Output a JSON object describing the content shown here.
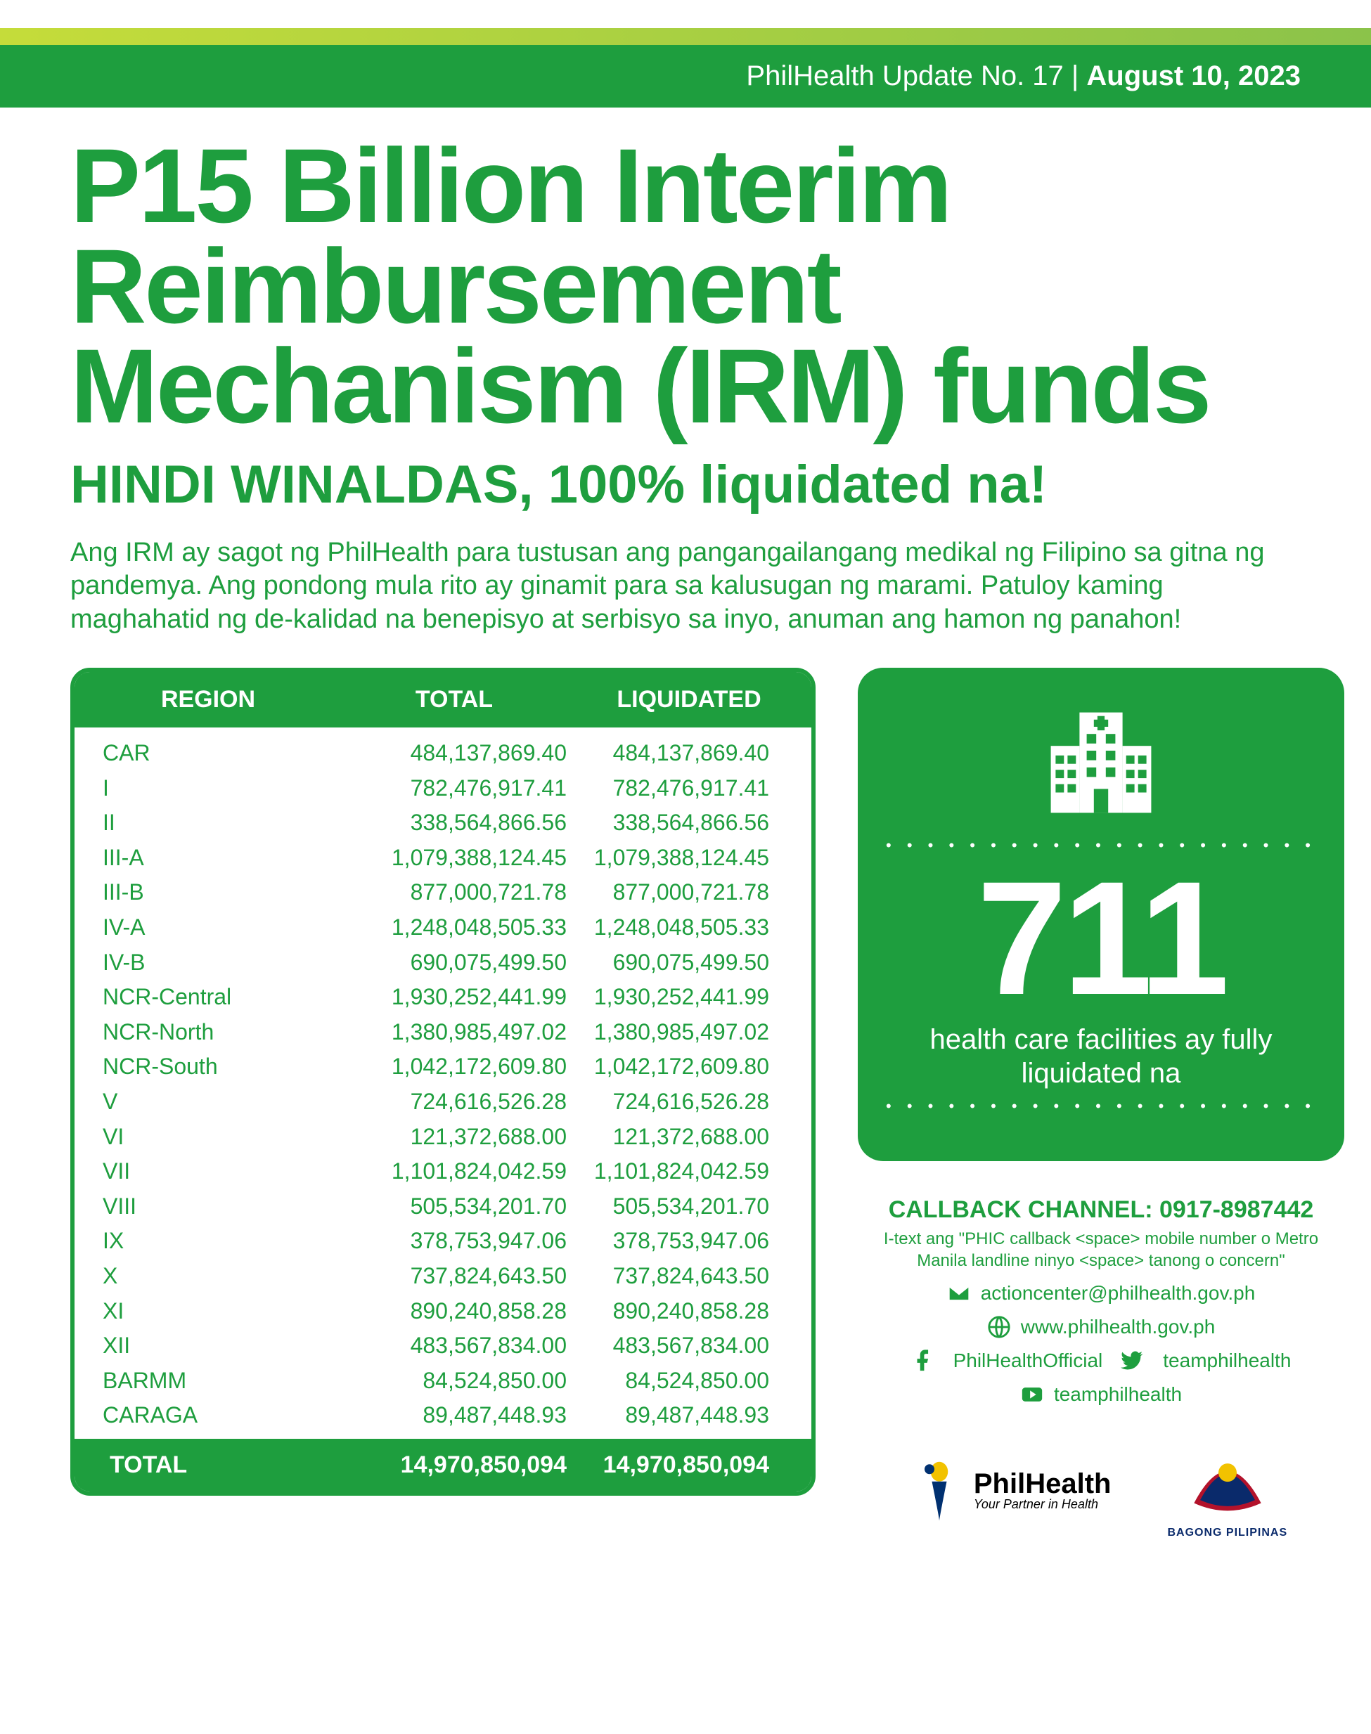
{
  "colors": {
    "primary": "#1e9e3e",
    "accent_light": "#c5dc3a",
    "accent_dark": "#8bc34a",
    "white": "#ffffff",
    "navy": "#0a2a6b"
  },
  "header": {
    "prefix": "PhilHealth Update No. 17 | ",
    "date": "August 10, 2023"
  },
  "title": "P15 Billion Interim Reimbursement Mechanism (IRM) funds",
  "subtitle": "HINDI WINALDAS, 100% liquidated na!",
  "intro": "Ang IRM ay sagot ng PhilHealth para tustusan ang pangangailangang medikal ng Filipino sa gitna ng pandemya. Ang pondong mula rito ay ginamit para sa kalusugan ng marami. Patuloy kaming maghahatid ng de-kalidad na benepisyo at serbisyo sa inyo, anuman ang hamon ng panahon!",
  "table": {
    "head_region": "REGION",
    "head_total": "TOTAL",
    "head_liquidated": "LIQUIDATED",
    "rows": [
      {
        "region": "CAR",
        "total": "484,137,869.40",
        "liq": "484,137,869.40"
      },
      {
        "region": "I",
        "total": "782,476,917.41",
        "liq": "782,476,917.41"
      },
      {
        "region": "II",
        "total": "338,564,866.56",
        "liq": "338,564,866.56"
      },
      {
        "region": "III-A",
        "total": "1,079,388,124.45",
        "liq": "1,079,388,124.45"
      },
      {
        "region": "III-B",
        "total": "877,000,721.78",
        "liq": "877,000,721.78"
      },
      {
        "region": "IV-A",
        "total": "1,248,048,505.33",
        "liq": "1,248,048,505.33"
      },
      {
        "region": "IV-B",
        "total": "690,075,499.50",
        "liq": "690,075,499.50"
      },
      {
        "region": "NCR-Central",
        "total": "1,930,252,441.99",
        "liq": "1,930,252,441.99"
      },
      {
        "region": "NCR-North",
        "total": "1,380,985,497.02",
        "liq": "1,380,985,497.02"
      },
      {
        "region": "NCR-South",
        "total": "1,042,172,609.80",
        "liq": "1,042,172,609.80"
      },
      {
        "region": "V",
        "total": "724,616,526.28",
        "liq": "724,616,526.28"
      },
      {
        "region": "VI",
        "total": "121,372,688.00",
        "liq": "121,372,688.00"
      },
      {
        "region": "VII",
        "total": "1,101,824,042.59",
        "liq": "1,101,824,042.59"
      },
      {
        "region": "VIII",
        "total": "505,534,201.70",
        "liq": "505,534,201.70"
      },
      {
        "region": "IX",
        "total": "378,753,947.06",
        "liq": "378,753,947.06"
      },
      {
        "region": "X",
        "total": "737,824,643.50",
        "liq": "737,824,643.50"
      },
      {
        "region": "XI",
        "total": "890,240,858.28",
        "liq": "890,240,858.28"
      },
      {
        "region": "XII",
        "total": "483,567,834.00",
        "liq": "483,567,834.00"
      },
      {
        "region": "BARMM",
        "total": "84,524,850.00",
        "liq": "84,524,850.00"
      },
      {
        "region": "CARAGA",
        "total": "89,487,448.93",
        "liq": "89,487,448.93"
      }
    ],
    "foot_label": "TOTAL",
    "foot_total": "14,970,850,094",
    "foot_liq": "14,970,850,094"
  },
  "card": {
    "number": "711",
    "text": "health care facilities ay fully liquidated na"
  },
  "callback": {
    "title": "CALLBACK CHANNEL: 0917-8987442",
    "sub": "I-text ang \"PHIC callback <space> mobile number o Metro Manila landline ninyo <space> tanong o concern\"",
    "email": "actioncenter@philhealth.gov.ph",
    "web": "www.philhealth.gov.ph",
    "fb": "PhilHealthOfficial",
    "tw": "teamphilhealth",
    "yt": "teamphilhealth"
  },
  "logos": {
    "ph_name": "PhilHealth",
    "ph_tag": "Your Partner in Health",
    "bp": "BAGONG PILIPINAS"
  }
}
